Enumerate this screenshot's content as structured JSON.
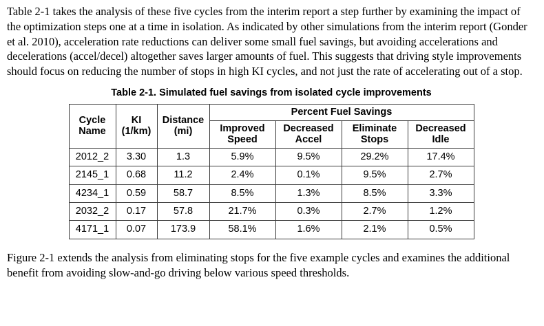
{
  "paragraphs": {
    "intro": "Table 2-1 takes the analysis of these five cycles from the interim report a step further by examining the impact of the optimization steps one at a time in isolation. As indicated by other simulations from the interim report (Gonder et al. 2010), acceleration rate reductions can deliver some small fuel savings, but avoiding accelerations and decelerations (accel/decel) altogether saves larger amounts of fuel. This suggests that driving style improvements should focus on reducing the number of stops in high KI cycles, and not just the rate of accelerating out of a stop.",
    "outro": "Figure 2-1 extends the analysis from eliminating stops for the five example cycles and examines the additional benefit from avoiding slow-and-go driving below various speed thresholds."
  },
  "table": {
    "caption": "Table 2-1. Simulated fuel savings from isolated cycle improvements",
    "headers": {
      "cycle_name": "Cycle Name",
      "ki": "KI (1/km)",
      "distance": "Distance (mi)",
      "percent_group": "Percent Fuel Savings",
      "improved_speed": "Improved Speed",
      "decreased_accel": "Decreased Accel",
      "eliminate_stops": "Eliminate Stops",
      "decreased_idle": "Decreased Idle"
    },
    "rows": [
      {
        "name": "2012_2",
        "ki": "3.30",
        "distance": "1.3",
        "improved_speed": "5.9%",
        "decreased_accel": "9.5%",
        "eliminate_stops": "29.2%",
        "decreased_idle": "17.4%"
      },
      {
        "name": "2145_1",
        "ki": "0.68",
        "distance": "11.2",
        "improved_speed": "2.4%",
        "decreased_accel": "0.1%",
        "eliminate_stops": "9.5%",
        "decreased_idle": "2.7%"
      },
      {
        "name": "4234_1",
        "ki": "0.59",
        "distance": "58.7",
        "improved_speed": "8.5%",
        "decreased_accel": "1.3%",
        "eliminate_stops": "8.5%",
        "decreased_idle": "3.3%"
      },
      {
        "name": "2032_2",
        "ki": "0.17",
        "distance": "57.8",
        "improved_speed": "21.7%",
        "decreased_accel": "0.3%",
        "eliminate_stops": "2.7%",
        "decreased_idle": "1.2%"
      },
      {
        "name": "4171_1",
        "ki": "0.07",
        "distance": "173.9",
        "improved_speed": "58.1%",
        "decreased_accel": "1.6%",
        "eliminate_stops": "2.1%",
        "decreased_idle": "0.5%"
      }
    ]
  }
}
